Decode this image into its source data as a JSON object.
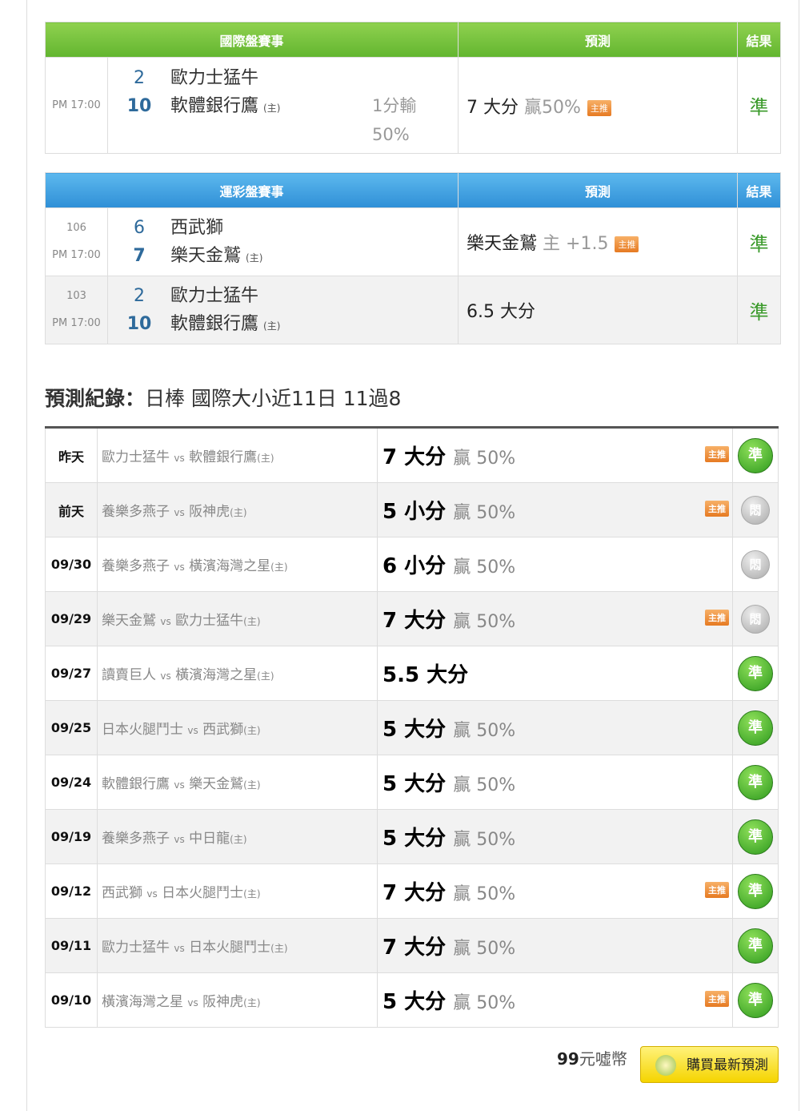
{
  "intl": {
    "headers": [
      "國際盤賽事",
      "預測",
      "結果"
    ],
    "rows": [
      {
        "time": "PM 17:00",
        "away_score": "2",
        "away": "歐力士猛牛",
        "home_score": "10",
        "home": "軟體銀行鷹",
        "home_mark": "(主)",
        "extra1": "1分輸",
        "extra2": "50%",
        "pred": "7 大分",
        "pred_note": "贏50%",
        "tag": "主推",
        "result": "準"
      }
    ]
  },
  "lottery": {
    "headers": [
      "運彩盤賽事",
      "預測",
      "結果"
    ],
    "rows": [
      {
        "id": "106",
        "time": "PM 17:00",
        "away_score": "6",
        "away": "西武獅",
        "home_score": "7",
        "home": "樂天金鷲",
        "home_mark": "(主)",
        "pred": "樂天金鷲",
        "pred_note": "主 +1.5",
        "tag": "主推",
        "result": "準"
      },
      {
        "id": "103",
        "time": "PM 17:00",
        "away_score": "2",
        "away": "歐力士猛牛",
        "home_score": "10",
        "home": "軟體銀行鷹",
        "home_mark": "(主)",
        "pred": "6.5 大分",
        "pred_note": "",
        "tag": "",
        "result": "準"
      }
    ]
  },
  "record": {
    "label": "預測紀錄：",
    "title": "日棒 國際大小近11日 11過8",
    "rows": [
      {
        "date": "昨天",
        "away": "歐力士猛牛",
        "home": "軟體銀行鷹",
        "pred": "7 大分",
        "win": "贏 50%",
        "tag": "主推",
        "result": "準"
      },
      {
        "date": "前天",
        "away": "養樂多燕子",
        "home": "阪神虎",
        "pred": "5 小分",
        "win": "贏 50%",
        "tag": "主推",
        "result": "悶"
      },
      {
        "date": "09/30",
        "away": "養樂多燕子",
        "home": "橫濱海灣之星",
        "pred": "6 小分",
        "win": "贏 50%",
        "tag": "",
        "result": "悶"
      },
      {
        "date": "09/29",
        "away": "樂天金鷲",
        "home": "歐力士猛牛",
        "pred": "7 大分",
        "win": "贏 50%",
        "tag": "主推",
        "result": "悶"
      },
      {
        "date": "09/27",
        "away": "讀賣巨人",
        "home": "橫濱海灣之星",
        "pred": "5.5 大分",
        "win": "",
        "tag": "",
        "result": "準"
      },
      {
        "date": "09/25",
        "away": "日本火腿鬥士",
        "home": "西武獅",
        "pred": "5 大分",
        "win": "贏 50%",
        "tag": "",
        "result": "準"
      },
      {
        "date": "09/24",
        "away": "軟體銀行鷹",
        "home": "樂天金鷲",
        "pred": "5 大分",
        "win": "贏 50%",
        "tag": "",
        "result": "準"
      },
      {
        "date": "09/19",
        "away": "養樂多燕子",
        "home": "中日龍",
        "pred": "5 大分",
        "win": "贏 50%",
        "tag": "",
        "result": "準"
      },
      {
        "date": "09/12",
        "away": "西武獅",
        "home": "日本火腿鬥士",
        "pred": "7 大分",
        "win": "贏 50%",
        "tag": "主推",
        "result": "準"
      },
      {
        "date": "09/11",
        "away": "歐力士猛牛",
        "home": "日本火腿鬥士",
        "pred": "7 大分",
        "win": "贏 50%",
        "tag": "",
        "result": "準"
      },
      {
        "date": "09/10",
        "away": "橫濱海灣之星",
        "home": "阪神虎",
        "pred": "5 大分",
        "win": "贏 50%",
        "tag": "主推",
        "result": "準"
      }
    ],
    "vs": "vs",
    "home_mark": "(主)"
  },
  "footer": {
    "price": "99",
    "unit": "元噓幣",
    "buy_label": "購買最新預測"
  },
  "colors": {
    "green_header": "#6cbd38",
    "blue_header": "#3a9ee0",
    "tag": "#e8842e"
  }
}
